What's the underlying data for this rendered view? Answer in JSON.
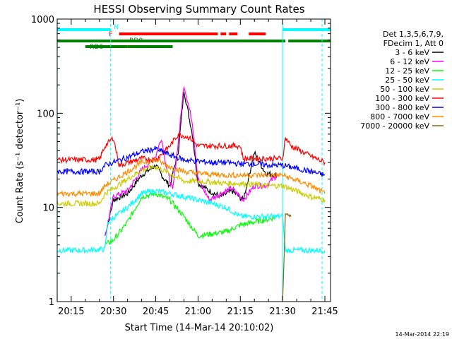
{
  "chart_data": {
    "type": "line",
    "title": "HESSI Observing Summary Count Rates",
    "xlabel": "Start Time (14-Mar-14 20:10:02)",
    "ylabel": "Count Rate (s⁻¹ detector⁻¹)",
    "y_scale": "log",
    "ylim": [
      1,
      1000
    ],
    "xlim": [
      "20:10:02",
      "21:47:00"
    ],
    "x_ticks": [
      "20:15",
      "20:30",
      "20:45",
      "21:00",
      "21:15",
      "21:30",
      "21:45"
    ],
    "y_ticks": [
      "1",
      "10",
      "100",
      "1000"
    ],
    "grid": false,
    "legend_position": "right",
    "legend_header": [
      "Det 1,3,5,6,7,9,",
      "FDecim 1, Att 0"
    ],
    "timestamp": "14-Mar-2014 22:19",
    "flags": {
      "N": {
        "color": "#00ffff",
        "intervals": [
          [
            "20:10",
            "20:29"
          ],
          [
            "21:30",
            "21:47"
          ]
        ]
      },
      "F": {
        "color": "#ff0000",
        "intervals": [
          [
            "20:32",
            "21:07"
          ],
          [
            "21:08",
            "21:10"
          ],
          [
            "21:11",
            "21:14"
          ],
          [
            "21:18",
            "21:24"
          ]
        ]
      },
      "RD0": {
        "color": "#008000",
        "intervals": [
          [
            "20:10",
            "21:31"
          ],
          [
            "21:32",
            "21:47"
          ]
        ]
      },
      "RD6": {
        "color": "#008000",
        "intervals": [
          [
            "20:20",
            "20:35"
          ],
          [
            "20:35",
            "20:51"
          ]
        ]
      }
    },
    "dashed_markers": [
      "20:29",
      "21:44"
    ],
    "solid_markers": [
      "20:10",
      "21:30"
    ],
    "series": [
      {
        "name": "3 - 6 keV",
        "color": "#000000",
        "points": [
          [
            "20:27",
            5
          ],
          [
            "20:30",
            12
          ],
          [
            "20:35",
            14
          ],
          [
            "20:40",
            22
          ],
          [
            "20:45",
            28
          ],
          [
            "20:48",
            20
          ],
          [
            "20:50",
            17
          ],
          [
            "20:53",
            40
          ],
          [
            "20:55",
            175
          ],
          [
            "20:58",
            60
          ],
          [
            "21:00",
            18
          ],
          [
            "21:04",
            15
          ],
          [
            "21:08",
            13
          ],
          [
            "21:12",
            15
          ],
          [
            "21:16",
            12
          ],
          [
            "21:20",
            38
          ],
          [
            "21:24",
            23
          ],
          [
            "21:28",
            22
          ]
        ]
      },
      {
        "name": "6 - 12 keV",
        "color": "#ff00ff",
        "points": [
          [
            "20:27",
            5
          ],
          [
            "20:30",
            13
          ],
          [
            "20:35",
            15
          ],
          [
            "20:40",
            25
          ],
          [
            "20:45",
            35
          ],
          [
            "20:47",
            55
          ],
          [
            "20:49",
            25
          ],
          [
            "20:51",
            15
          ],
          [
            "20:53",
            50
          ],
          [
            "20:55",
            200
          ],
          [
            "20:58",
            80
          ],
          [
            "21:00",
            20
          ],
          [
            "21:04",
            12
          ],
          [
            "21:08",
            14
          ],
          [
            "21:12",
            16
          ],
          [
            "21:16",
            12
          ],
          [
            "21:20",
            17
          ],
          [
            "21:24",
            17
          ],
          [
            "21:28",
            22
          ]
        ]
      },
      {
        "name": "12 - 25 keV",
        "color": "#00ff00",
        "points": [
          [
            "20:27",
            4
          ],
          [
            "20:30",
            4.5
          ],
          [
            "20:35",
            7
          ],
          [
            "20:40",
            13
          ],
          [
            "20:45",
            14
          ],
          [
            "20:50",
            12
          ],
          [
            "20:55",
            8
          ],
          [
            "21:00",
            5
          ],
          [
            "21:10",
            5.5
          ],
          [
            "21:15",
            6.5
          ],
          [
            "21:20",
            7
          ],
          [
            "21:25",
            7.5
          ],
          [
            "21:28",
            8
          ]
        ]
      },
      {
        "name": "25 - 50 keV",
        "color": "#00ffff",
        "points": [
          [
            "20:10",
            3.5
          ],
          [
            "20:20",
            3.5
          ],
          [
            "20:27",
            3.6
          ],
          [
            "20:28",
            7
          ],
          [
            "20:35",
            10
          ],
          [
            "20:40",
            14
          ],
          [
            "20:45",
            15
          ],
          [
            "20:50",
            14
          ],
          [
            "20:55",
            13
          ],
          [
            "21:00",
            12
          ],
          [
            "21:05",
            11
          ],
          [
            "21:10",
            10
          ],
          [
            "21:15",
            8
          ],
          [
            "21:20",
            8
          ],
          [
            "21:25",
            8
          ],
          [
            "21:30",
            8
          ],
          [
            "21:31",
            3.5
          ],
          [
            "21:40",
            3.5
          ],
          [
            "21:45",
            3.5
          ]
        ]
      },
      {
        "name": "50 - 100 keV",
        "color": "#cccc00",
        "points": [
          [
            "20:10",
            11
          ],
          [
            "20:25",
            11
          ],
          [
            "20:27",
            14
          ],
          [
            "20:35",
            20
          ],
          [
            "20:40",
            25
          ],
          [
            "20:45",
            27
          ],
          [
            "20:50",
            23
          ],
          [
            "20:55",
            19
          ],
          [
            "21:00",
            19
          ],
          [
            "21:05",
            18.5
          ],
          [
            "21:10",
            18
          ],
          [
            "21:15",
            18
          ],
          [
            "21:20",
            17.5
          ],
          [
            "21:25",
            17
          ],
          [
            "21:30",
            17
          ],
          [
            "21:40",
            13
          ],
          [
            "21:45",
            12
          ]
        ]
      },
      {
        "name": "100 - 300 keV",
        "color": "#ff0000",
        "points": [
          [
            "20:10",
            32
          ],
          [
            "20:25",
            32
          ],
          [
            "20:27",
            45
          ],
          [
            "20:30",
            55
          ],
          [
            "20:32",
            28
          ],
          [
            "20:40",
            33
          ],
          [
            "20:45",
            32
          ],
          [
            "20:50",
            45
          ],
          [
            "20:53",
            60
          ],
          [
            "20:57",
            55
          ],
          [
            "21:00",
            45
          ],
          [
            "21:10",
            45
          ],
          [
            "21:15",
            45
          ],
          [
            "21:16",
            33
          ],
          [
            "21:25",
            33
          ],
          [
            "21:30",
            33
          ],
          [
            "21:31",
            55
          ],
          [
            "21:33",
            45
          ],
          [
            "21:40",
            35
          ],
          [
            "21:45",
            30
          ]
        ]
      },
      {
        "name": "300 - 800 keV",
        "color": "#0000ff",
        "points": [
          [
            "20:10",
            24
          ],
          [
            "20:25",
            24
          ],
          [
            "20:27",
            28
          ],
          [
            "20:35",
            34
          ],
          [
            "20:40",
            39
          ],
          [
            "20:45",
            42
          ],
          [
            "20:50",
            36
          ],
          [
            "20:55",
            32
          ],
          [
            "21:00",
            31
          ],
          [
            "21:05",
            30
          ],
          [
            "21:10",
            30
          ],
          [
            "21:15",
            29
          ],
          [
            "21:20",
            29
          ],
          [
            "21:25",
            28
          ],
          [
            "21:30",
            28
          ],
          [
            "21:35",
            26
          ],
          [
            "21:40",
            24
          ],
          [
            "21:45",
            22
          ]
        ]
      },
      {
        "name": "800 - 7000 keV",
        "color": "#ff8c00",
        "points": [
          [
            "20:10",
            14
          ],
          [
            "20:25",
            14
          ],
          [
            "20:27",
            17
          ],
          [
            "20:35",
            24
          ],
          [
            "20:40",
            30
          ],
          [
            "20:45",
            32
          ],
          [
            "20:50",
            27
          ],
          [
            "20:55",
            24
          ],
          [
            "21:00",
            23
          ],
          [
            "21:05",
            22.5
          ],
          [
            "21:10",
            22
          ],
          [
            "21:15",
            22
          ],
          [
            "21:20",
            22
          ],
          [
            "21:25",
            22
          ],
          [
            "21:30",
            22
          ],
          [
            "21:40",
            17
          ],
          [
            "21:45",
            14
          ]
        ]
      },
      {
        "name": "7000 - 20000 keV",
        "color": "#8b6508",
        "points": [
          [
            "21:30",
            1
          ],
          [
            "21:31",
            8
          ],
          [
            "21:33",
            8
          ]
        ]
      }
    ]
  }
}
